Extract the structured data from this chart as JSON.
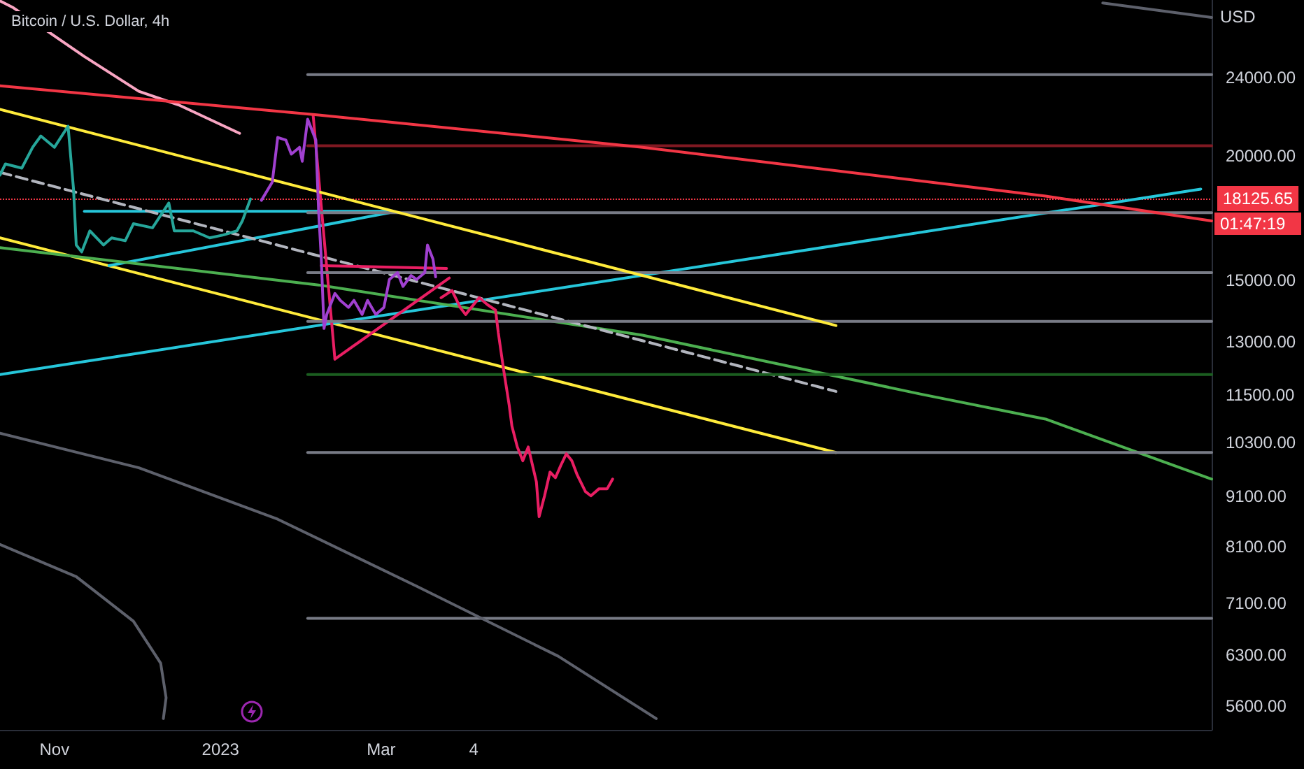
{
  "chart_data": {
    "type": "line",
    "title": "Bitcoin / U.S. Dollar, 4h",
    "ylabel": "USD",
    "log": true,
    "grid": false,
    "xlim": [
      "2022-10-12",
      "2023-12-31"
    ],
    "xticks": [
      {
        "value": "2022-11-01",
        "label": "Nov"
      },
      {
        "value": "2023-01-01",
        "label": "2023"
      },
      {
        "value": "2023-03-01",
        "label": "Mar"
      },
      {
        "value": "2023-04-04",
        "label": "4"
      }
    ],
    "ylim": [
      5300,
      28700
    ],
    "yticks": [
      {
        "value": 5600,
        "label": "5600.00"
      },
      {
        "value": 6300,
        "label": "6300.00"
      },
      {
        "value": 7100,
        "label": "7100.00"
      },
      {
        "value": 8100,
        "label": "8100.00"
      },
      {
        "value": 9100,
        "label": "9100.00"
      },
      {
        "value": 10300,
        "label": "10300.00"
      },
      {
        "value": 11500,
        "label": "11500.00"
      },
      {
        "value": 13000,
        "label": "13000.00"
      },
      {
        "value": 15000,
        "label": "15000.00"
      },
      {
        "value": 20000,
        "label": "20000.00"
      },
      {
        "value": 24000,
        "label": "24000.00"
      }
    ],
    "ref_lines": [
      {
        "axis": "y",
        "value": 18125.65,
        "label": "18125.65",
        "color": "#f23645",
        "line_style": "dotted"
      }
    ],
    "annotations": [
      "01:47:19"
    ],
    "series": [
      {
        "color": "#26a69a",
        "x": [
          "2022-10-12",
          "2022-10-14",
          "2022-10-20",
          "2022-10-24",
          "2022-10-27",
          "2022-11-01",
          "2022-11-06",
          "2022-11-08",
          "2022-11-09",
          "2022-11-11",
          "2022-11-14",
          "2022-11-19",
          "2022-11-22",
          "2022-11-27",
          "2022-11-30",
          "2022-12-07",
          "2022-12-13",
          "2022-12-15",
          "2022-12-22",
          "2022-12-28",
          "2023-01-02",
          "2023-01-07",
          "2023-01-09",
          "2023-01-12"
        ],
        "values": [
          19140,
          19640,
          19450,
          20410,
          20950,
          20410,
          21430,
          18530,
          16280,
          16020,
          16820,
          16280,
          16550,
          16440,
          17100,
          16940,
          17940,
          16820,
          16820,
          16550,
          16660,
          16820,
          17210,
          18110
        ]
      },
      {
        "color": "#a040d0",
        "x": [
          "2023-01-16",
          "2023-01-20",
          "2023-01-22",
          "2023-01-25",
          "2023-01-27",
          "2023-01-30",
          "2023-01-31",
          "2023-02-02",
          "2023-02-03",
          "2023-02-05",
          "2023-02-06",
          "2023-02-07",
          "2023-02-08",
          "2023-02-09",
          "2023-02-12",
          "2023-02-14",
          "2023-02-17",
          "2023-02-19",
          "2023-02-22",
          "2023-02-24",
          "2023-02-27",
          "2023-03-02",
          "2023-03-04",
          "2023-03-07",
          "2023-03-09",
          "2023-03-12",
          "2023-03-14",
          "2023-03-17",
          "2023-03-18",
          "2023-03-20",
          "2023-03-21"
        ],
        "values": [
          18050,
          18830,
          20880,
          20750,
          20090,
          20410,
          19760,
          21780,
          21430,
          20750,
          17650,
          15760,
          13420,
          13860,
          14550,
          14320,
          14090,
          14320,
          13860,
          14320,
          13860,
          14090,
          15030,
          15270,
          14790,
          15170,
          15030,
          15270,
          16280,
          15760,
          15120
        ]
      },
      {
        "color": "#e91e63",
        "x": [
          "2023-03-23",
          "2023-03-27",
          "2023-03-30",
          "2023-04-01",
          "2023-04-06",
          "2023-04-09",
          "2023-04-12",
          "2023-04-13",
          "2023-04-15",
          "2023-04-17",
          "2023-04-18",
          "2023-04-20",
          "2023-04-22",
          "2023-04-24",
          "2023-04-27",
          "2023-04-28",
          "2023-04-30",
          "2023-05-02",
          "2023-05-04",
          "2023-05-06",
          "2023-05-08",
          "2023-05-10",
          "2023-05-12",
          "2023-05-15",
          "2023-05-17",
          "2023-05-20",
          "2023-05-23",
          "2023-05-25"
        ],
        "values": [
          14410,
          14650,
          14090,
          13860,
          14410,
          14180,
          14000,
          13290,
          12180,
          11240,
          10710,
          10200,
          9880,
          10200,
          9410,
          8680,
          9110,
          9625,
          9500,
          9780,
          10040,
          9880,
          9560,
          9200,
          9110,
          9260,
          9260,
          9470
        ]
      },
      {
        "color": "#f23645",
        "x": [
          "2022-10-12",
          "2023-02-06",
          "2023-06-05",
          "2023-10-31",
          "2023-12-31"
        ],
        "values": [
          23530,
          21990,
          20410,
          18230,
          17210
        ]
      },
      {
        "color": "#ffeb3b",
        "x": [
          "2022-10-12",
          "2023-08-15"
        ],
        "values": [
          22280,
          13510
        ]
      },
      {
        "color": "#ffeb3b",
        "x": [
          "2022-10-12",
          "2023-08-15"
        ],
        "values": [
          16550,
          10070
        ]
      },
      {
        "color": "#26c6da",
        "x": [
          "2022-10-12",
          "2023-12-27"
        ],
        "values": [
          12060,
          18530
        ]
      },
      {
        "color": "#26c6da",
        "x": [
          "2022-11-12",
          "2023-03-04"
        ],
        "values": [
          17600,
          17600
        ]
      },
      {
        "color": "#26c6da",
        "x": [
          "2022-11-21",
          "2023-03-04"
        ],
        "values": [
          15520,
          17540
        ]
      },
      {
        "color": "#4caf50",
        "x": [
          "2022-10-12",
          "2023-02-06",
          "2023-06-05",
          "2023-09-15",
          "2023-10-31",
          "2023-12-31"
        ],
        "values": [
          16180,
          14840,
          13210,
          11530,
          10880,
          9470
        ]
      },
      {
        "color": "#b2b5be",
        "line_style": "dashed",
        "x": [
          "2022-10-12",
          "2023-08-15"
        ],
        "values": [
          19260,
          11600
        ]
      },
      {
        "color": "#f8a5c2",
        "x": [
          "2022-10-12",
          "2022-10-17",
          "2022-11-12",
          "2022-12-02",
          "2022-12-17",
          "2023-01-08"
        ],
        "values": [
          28640,
          28180,
          25180,
          23230,
          22490,
          21080
        ]
      },
      {
        "color": "#e91e63",
        "x": [
          "2023-02-04",
          "2023-02-12"
        ],
        "values": [
          21990,
          12500
        ]
      },
      {
        "color": "#e91e63",
        "x": [
          "2023-02-07",
          "2023-03-25"
        ],
        "values": [
          15520,
          15420
        ]
      },
      {
        "color": "#e91e63",
        "x": [
          "2023-02-12",
          "2023-03-26"
        ],
        "values": [
          12500,
          15080
        ]
      },
      {
        "color": "#787b86",
        "x": [
          "2023-02-02",
          "2023-12-31"
        ],
        "values": [
          24150,
          24150
        ]
      },
      {
        "color": "#801922",
        "x": [
          "2023-02-02",
          "2023-12-31"
        ],
        "values": [
          20480,
          20480
        ]
      },
      {
        "color": "#787b86",
        "x": [
          "2023-02-02",
          "2023-12-31"
        ],
        "values": [
          17540,
          17540
        ]
      },
      {
        "color": "#787b86",
        "x": [
          "2023-02-02",
          "2023-12-31"
        ],
        "values": [
          15270,
          15270
        ]
      },
      {
        "color": "#787b86",
        "x": [
          "2023-02-02",
          "2023-12-31"
        ],
        "values": [
          13640,
          13640
        ]
      },
      {
        "color": "#1b5e20",
        "x": [
          "2023-02-02",
          "2023-12-31"
        ],
        "values": [
          12060,
          12060
        ]
      },
      {
        "color": "#787b86",
        "x": [
          "2023-02-02",
          "2023-12-31"
        ],
        "values": [
          10070,
          10070
        ]
      },
      {
        "color": "#787b86",
        "x": [
          "2023-02-02",
          "2023-12-31"
        ],
        "values": [
          6860,
          6860
        ]
      },
      {
        "color": "#5d606b",
        "x": [
          "2022-10-12",
          "2022-12-02",
          "2023-01-22",
          "2023-03-14",
          "2023-05-05",
          "2023-06-10"
        ],
        "values": [
          10530,
          9720,
          8630,
          7390,
          6285,
          5440
        ]
      },
      {
        "color": "#5d606b",
        "x": [
          "2022-10-12",
          "2022-11-09",
          "2022-11-30",
          "2022-12-10",
          "2022-12-12",
          "2022-12-11"
        ],
        "values": [
          8140,
          7555,
          6815,
          6185,
          5710,
          5440
        ]
      },
      {
        "color": "#5d606b",
        "x": [
          "2023-11-21",
          "2023-12-31"
        ],
        "values": [
          28500,
          27560
        ]
      }
    ]
  }
}
